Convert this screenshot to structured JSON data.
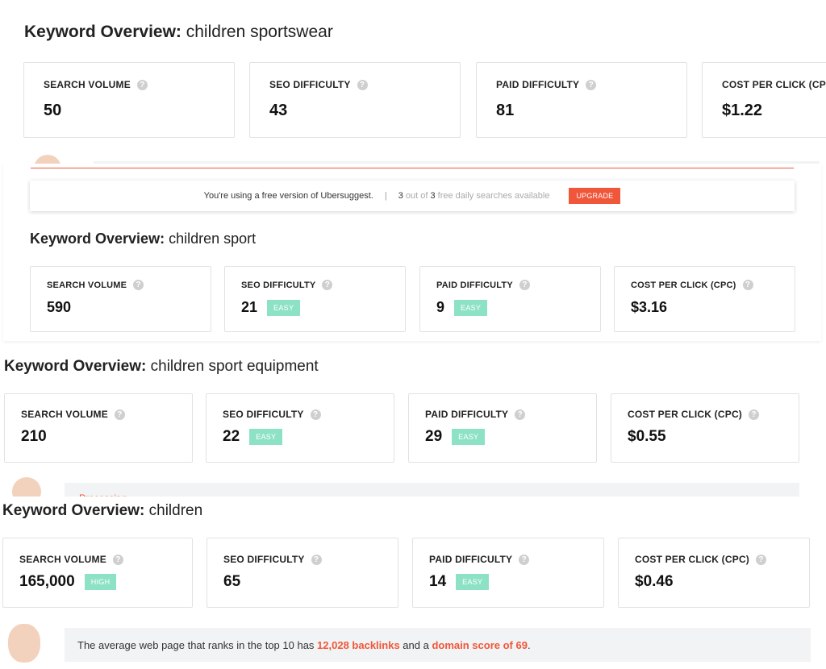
{
  "panels": [
    {
      "title_bold": "Keyword Overview:",
      "keyword": "children sportswear",
      "cards": [
        {
          "label": "SEARCH VOLUME",
          "value": "50",
          "badge": ""
        },
        {
          "label": "SEO DIFFICULTY",
          "value": "43",
          "badge": ""
        },
        {
          "label": "PAID DIFFICULTY",
          "value": "81",
          "badge": ""
        },
        {
          "label": "COST PER CLICK (CPC)",
          "value": "$1.22",
          "badge": ""
        }
      ]
    },
    {
      "title_bold": "Keyword Overview:",
      "keyword": "children sport",
      "cards": [
        {
          "label": "SEARCH VOLUME",
          "value": "590",
          "badge": ""
        },
        {
          "label": "SEO DIFFICULTY",
          "value": "21",
          "badge": "EASY"
        },
        {
          "label": "PAID DIFFICULTY",
          "value": "9",
          "badge": "EASY"
        },
        {
          "label": "COST PER CLICK (CPC)",
          "value": "$3.16",
          "badge": ""
        }
      ]
    },
    {
      "title_bold": "Keyword Overview:",
      "keyword": "children sport equipment",
      "cards": [
        {
          "label": "SEARCH VOLUME",
          "value": "210",
          "badge": ""
        },
        {
          "label": "SEO DIFFICULTY",
          "value": "22",
          "badge": "EASY"
        },
        {
          "label": "PAID DIFFICULTY",
          "value": "29",
          "badge": "EASY"
        },
        {
          "label": "COST PER CLICK (CPC)",
          "value": "$0.55",
          "badge": ""
        }
      ]
    },
    {
      "title_bold": "Keyword Overview:",
      "keyword": "children",
      "cards": [
        {
          "label": "SEARCH VOLUME",
          "value": "165,000",
          "badge": "HIGH"
        },
        {
          "label": "SEO DIFFICULTY",
          "value": "65",
          "badge": ""
        },
        {
          "label": "PAID DIFFICULTY",
          "value": "14",
          "badge": "EASY"
        },
        {
          "label": "COST PER CLICK (CPC)",
          "value": "$0.46",
          "badge": ""
        }
      ]
    }
  ],
  "banner": {
    "free_text": "You're using a free version of Ubersuggest.",
    "separator": "|",
    "count_used": "3",
    "out_of": " out of ",
    "count_total": "3",
    "available_text": " free daily searches available",
    "upgrade_label": "UPGRADE"
  },
  "processing_text": "Processing",
  "tip": {
    "prefix": "The average web page that ranks in the top 10 has ",
    "backlinks": "12,028 backlinks",
    "middle": " and a ",
    "domain_score": "domain score of 69",
    "suffix": "."
  },
  "colors": {
    "accent": "#f0563a",
    "badge_green": "#8de2c6",
    "help_icon": "#cfcfcf"
  }
}
